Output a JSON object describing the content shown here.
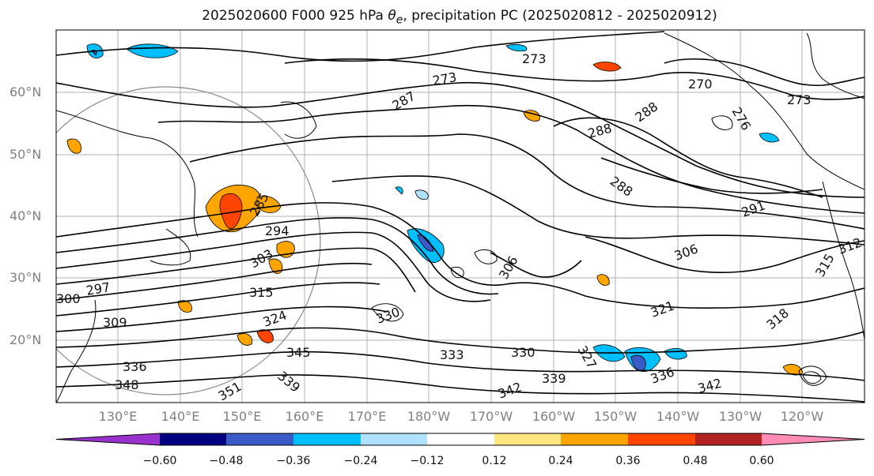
{
  "title": {
    "prefix": "2025020600 F000 925 hPa ",
    "theta_symbol": "θ",
    "theta_subscript": "e",
    "suffix": ", precipitation PC (2025020812 - 2025020912)"
  },
  "lat_labels": [
    "60°N",
    "50°N",
    "40°N",
    "30°N",
    "20°N"
  ],
  "lon_labels": [
    "130°E",
    "140°E",
    "150°E",
    "160°E",
    "170°E",
    "180°W",
    "170°W",
    "160°W",
    "150°W",
    "140°W",
    "130°W",
    "120°W"
  ],
  "colorbar": {
    "colors": [
      "#9932cc",
      "#000080",
      "#3a5bc7",
      "#00bfff",
      "#b0e2ff",
      "#ffffff",
      "#ffe680",
      "#ffa500",
      "#ff4500",
      "#b22222",
      "#ff8cb4"
    ],
    "tick_labels": [
      "−0.60",
      "−0.48",
      "−0.36",
      "−0.24",
      "−0.12",
      "0.12",
      "0.24",
      "0.36",
      "0.48",
      "0.60"
    ]
  },
  "contour_labels": [
    "273",
    "273",
    "287",
    "270",
    "288",
    "288",
    "288",
    "273",
    "291",
    "276",
    "285",
    "294",
    "303",
    "297",
    "300",
    "309",
    "315",
    "318",
    "321",
    "324",
    "327",
    "330",
    "333",
    "336",
    "336",
    "339",
    "339",
    "342",
    "342",
    "345",
    "348",
    "351",
    "330",
    "306",
    "306",
    "312",
    "315"
  ]
}
